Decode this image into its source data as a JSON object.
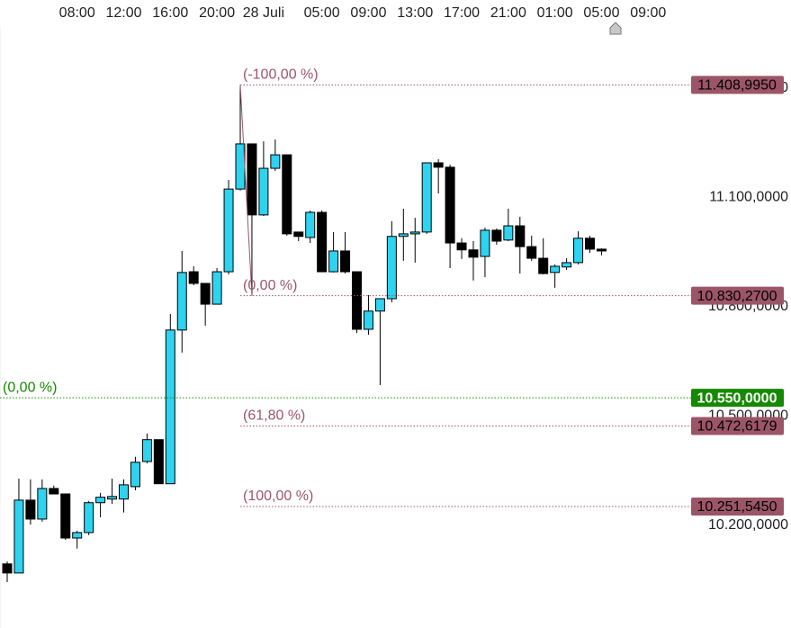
{
  "chart_data": {
    "type": "candlestick",
    "categories": [
      null,
      null,
      null,
      null,
      null,
      null,
      "08:00",
      null,
      null,
      null,
      "12:00",
      null,
      null,
      null,
      "16:00",
      null,
      null,
      null,
      "20:00",
      null,
      null,
      null,
      "28 Juli",
      null,
      null,
      null,
      null,
      "05:00",
      null,
      null,
      null,
      "09:00",
      null,
      null,
      null,
      "13:00",
      null,
      null,
      null,
      "17:00",
      null,
      null,
      null,
      "21:00",
      null,
      null,
      null,
      "01:00",
      null,
      null,
      null,
      "05:00",
      null,
      null,
      null,
      "09:00"
    ],
    "open": [
      10.094,
      10.069,
      10.269,
      10.217,
      10.301,
      10.286,
      10.165,
      10.18,
      10.262,
      10.272,
      10.272,
      10.306,
      10.375,
      10.435,
      10.314,
      10.736,
      10.896,
      10.864,
      10.807,
      10.896,
      11.123,
      11.247,
      11.052,
      11.18,
      11.217,
      11.005,
      10.99,
      11.059,
      10.896,
      10.953,
      10.896,
      10.738,
      10.788,
      10.822,
      10.993,
      11.0,
      11.005,
      11.195,
      11.183,
      10.975,
      10.956,
      10.938,
      11.01,
      10.983,
      11.022,
      10.965,
      10.933,
      10.894,
      10.909,
      10.921,
      10.988,
      10.958,
      null,
      null,
      null,
      null
    ],
    "high": [
      10.101,
      10.328,
      10.326,
      10.326,
      10.309,
      10.286,
      10.185,
      10.267,
      10.289,
      10.328,
      10.326,
      10.388,
      10.452,
      10.435,
      10.78,
      10.953,
      10.911,
      10.864,
      10.906,
      11.148,
      11.409,
      11.247,
      11.254,
      11.259,
      11.217,
      11.005,
      11.064,
      11.064,
      11.005,
      11.005,
      10.896,
      10.832,
      10.822,
      11.035,
      11.069,
      11.044,
      11.195,
      11.205,
      11.19,
      10.988,
      10.98,
      11.017,
      11.015,
      11.069,
      11.047,
      10.995,
      10.988,
      10.916,
      10.933,
      11.007,
      10.995,
      10.96,
      null,
      null,
      null,
      null
    ],
    "low": [
      10.044,
      10.069,
      10.202,
      10.21,
      10.286,
      10.16,
      10.136,
      10.173,
      10.222,
      10.259,
      10.235,
      10.296,
      10.37,
      10.314,
      10.314,
      10.674,
      10.859,
      10.748,
      10.807,
      10.889,
      11.119,
      10.83,
      11.049,
      11.173,
      10.995,
      10.98,
      10.975,
      10.896,
      10.894,
      10.891,
      10.728,
      10.723,
      10.585,
      10.812,
      10.926,
      10.921,
      11.0,
      11.111,
      10.906,
      10.931,
      10.872,
      10.881,
      10.97,
      10.98,
      10.891,
      10.926,
      10.889,
      10.852,
      10.901,
      10.916,
      10.948,
      10.941,
      null,
      null,
      null,
      null
    ],
    "close": [
      10.069,
      10.269,
      10.217,
      10.301,
      10.286,
      10.165,
      10.18,
      10.262,
      10.277,
      10.279,
      10.311,
      10.373,
      10.435,
      10.314,
      10.736,
      10.894,
      10.864,
      10.807,
      10.896,
      11.123,
      11.247,
      11.052,
      11.18,
      11.217,
      11.0,
      10.993,
      11.059,
      10.896,
      10.953,
      10.896,
      10.738,
      10.788,
      10.822,
      10.993,
      11.0,
      11.005,
      11.195,
      11.183,
      10.975,
      10.956,
      10.936,
      11.01,
      10.98,
      11.022,
      10.965,
      10.933,
      10.891,
      10.911,
      10.921,
      10.988,
      10.958,
      10.953,
      null,
      null,
      null,
      null
    ],
    "up_color": "#2ed3f0",
    "down_color": "#000000",
    "ylim": [
      9.918,
      11.642
    ],
    "yticks": [
      {
        "value": 10.2,
        "label": "10.200,0000"
      },
      {
        "value": 10.5,
        "label": "10.500,0000"
      },
      {
        "value": 10.8,
        "label": "10.800,0000"
      },
      {
        "value": 11.1,
        "label": "11.100,0000"
      },
      {
        "value": 11.4,
        "label": "11.400,0000"
      }
    ],
    "levels": [
      {
        "label": "(-100,00 %)",
        "value": 11.408995,
        "value_label": "11.408,9950"
      },
      {
        "label": "(0,00 %)",
        "value": 10.83027,
        "value_label": "10.830,2700"
      },
      {
        "label": "(61,80 %)",
        "value": 10.4726179,
        "value_label": "10.472,6179"
      },
      {
        "label": "(100,00 %)",
        "value": 10.251545,
        "value_label": "10.251,5450"
      }
    ],
    "levels_color": "#9c5568",
    "price_line": {
      "label": "(0,00 %)",
      "value": 10.55,
      "value_label": "10.550,0000",
      "color": "#158a00"
    }
  }
}
